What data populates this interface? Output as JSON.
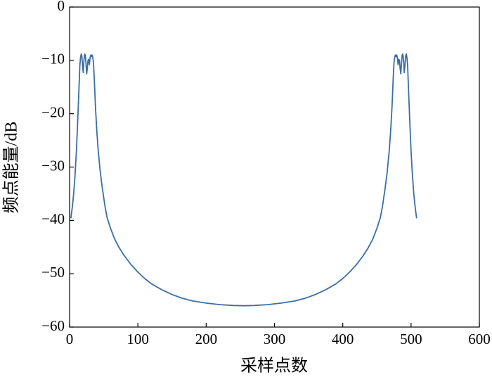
{
  "chart_data": {
    "type": "line",
    "xlabel": "采样点数",
    "ylabel": "频点能量/dB",
    "xlim": [
      0,
      600
    ],
    "ylim": [
      -60,
      0
    ],
    "xticks": [
      0,
      100,
      200,
      300,
      400,
      500,
      600
    ],
    "xtick_labels": [
      "0",
      "100",
      "200",
      "300",
      "400",
      "500",
      "600"
    ],
    "yticks": [
      0,
      -10,
      -20,
      -30,
      -40,
      -50,
      -60
    ],
    "ytick_labels": [
      "0",
      "−10",
      "−20",
      "−30",
      "−40",
      "−50",
      "−60"
    ],
    "grid": false,
    "series": [
      {
        "color": "#3a6ea5",
        "x": [
          2,
          4,
          6,
          8,
          10,
          12,
          14,
          15,
          16,
          17,
          18,
          19,
          20,
          21,
          22,
          23,
          24,
          25,
          26,
          27,
          28,
          29,
          30,
          31,
          32,
          33,
          34,
          35,
          36,
          37,
          38,
          40,
          42,
          45,
          48,
          52,
          55,
          60,
          66,
          73,
          80,
          90,
          100,
          110,
          120,
          135,
          150,
          165,
          180,
          200,
          220,
          240,
          255,
          270,
          290,
          310,
          330,
          345,
          360,
          375,
          390,
          400,
          410,
          420,
          430,
          437,
          444,
          450,
          455,
          458,
          462,
          465,
          468,
          470,
          472,
          473,
          474,
          475,
          476,
          477,
          478,
          479,
          480,
          481,
          482,
          483,
          484,
          485,
          486,
          487,
          488,
          489,
          490,
          491,
          492,
          493,
          494,
          495,
          496,
          498,
          500,
          502,
          504,
          506,
          508
        ],
        "y": [
          -39.5,
          -37.5,
          -35,
          -31.5,
          -27,
          -21,
          -14.5,
          -11,
          -9.5,
          -8.8,
          -9.2,
          -11,
          -12.3,
          -10,
          -8.8,
          -9,
          -10.5,
          -12.5,
          -11.5,
          -10,
          -9.8,
          -10.8,
          -9.5,
          -9,
          -9.3,
          -9,
          -9.5,
          -10.5,
          -13,
          -16,
          -19,
          -23.5,
          -27,
          -31,
          -34,
          -37.5,
          -39.5,
          -41.5,
          -43.5,
          -45.2,
          -46.6,
          -48.3,
          -49.7,
          -50.9,
          -51.9,
          -53,
          -53.9,
          -54.6,
          -55.1,
          -55.5,
          -55.8,
          -55.95,
          -56,
          -55.95,
          -55.8,
          -55.5,
          -55.1,
          -54.6,
          -53.9,
          -53,
          -51.9,
          -50.9,
          -49.7,
          -48.3,
          -46.6,
          -45.2,
          -43.5,
          -41.5,
          -39.5,
          -37.5,
          -34,
          -31,
          -27,
          -23.5,
          -19,
          -16,
          -13,
          -10.5,
          -9.5,
          -9,
          -9.3,
          -9,
          -9.5,
          -10.8,
          -9.8,
          -10,
          -11.5,
          -12.5,
          -10.5,
          -9,
          -8.8,
          -10,
          -12.3,
          -11,
          -9.2,
          -8.8,
          -9.5,
          -11,
          -14.5,
          -21,
          -27,
          -31.5,
          -35,
          -37.5,
          -39.5
        ]
      }
    ]
  }
}
